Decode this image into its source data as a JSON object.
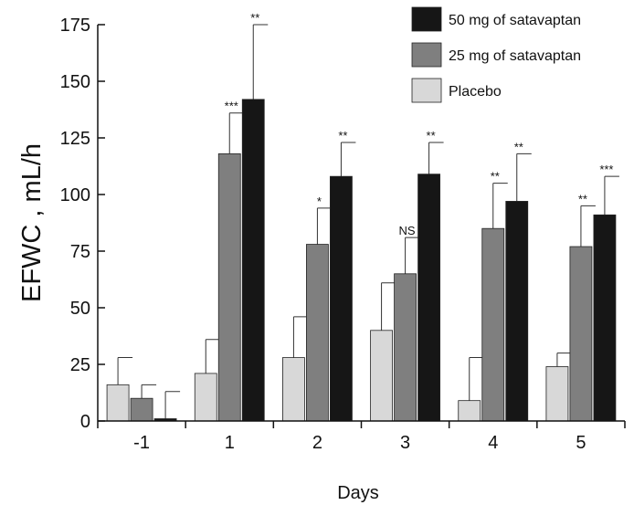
{
  "chart_data": {
    "type": "bar",
    "xlabel": "Days",
    "ylabel": "EFWC , mL/h",
    "ylim": [
      0,
      175
    ],
    "yticks": [
      0,
      25,
      50,
      75,
      100,
      125,
      150,
      175
    ],
    "categories": [
      "-1",
      "1",
      "2",
      "3",
      "4",
      "5"
    ],
    "legend_position": "top-right",
    "series": [
      {
        "name": "Placebo",
        "color": "#d8d8d8",
        "values": [
          16,
          21,
          28,
          40,
          9,
          24
        ],
        "error": [
          12,
          15,
          18,
          21,
          19,
          6
        ],
        "significance": [
          "",
          "",
          "",
          "",
          "",
          ""
        ]
      },
      {
        "name": "25 mg of satavaptan",
        "color": "#7f7f7f",
        "values": [
          10,
          118,
          78,
          65,
          85,
          77
        ],
        "error": [
          6,
          18,
          16,
          16,
          20,
          18
        ],
        "significance": [
          "",
          "***",
          "*",
          "NS",
          "**",
          "**"
        ]
      },
      {
        "name": "50 mg of satavaptan",
        "color": "#161616",
        "values": [
          1,
          142,
          108,
          109,
          97,
          91
        ],
        "error": [
          12,
          33,
          15,
          14,
          21,
          17
        ],
        "significance": [
          "",
          "**",
          "**",
          "**",
          "**",
          "***"
        ]
      }
    ]
  }
}
